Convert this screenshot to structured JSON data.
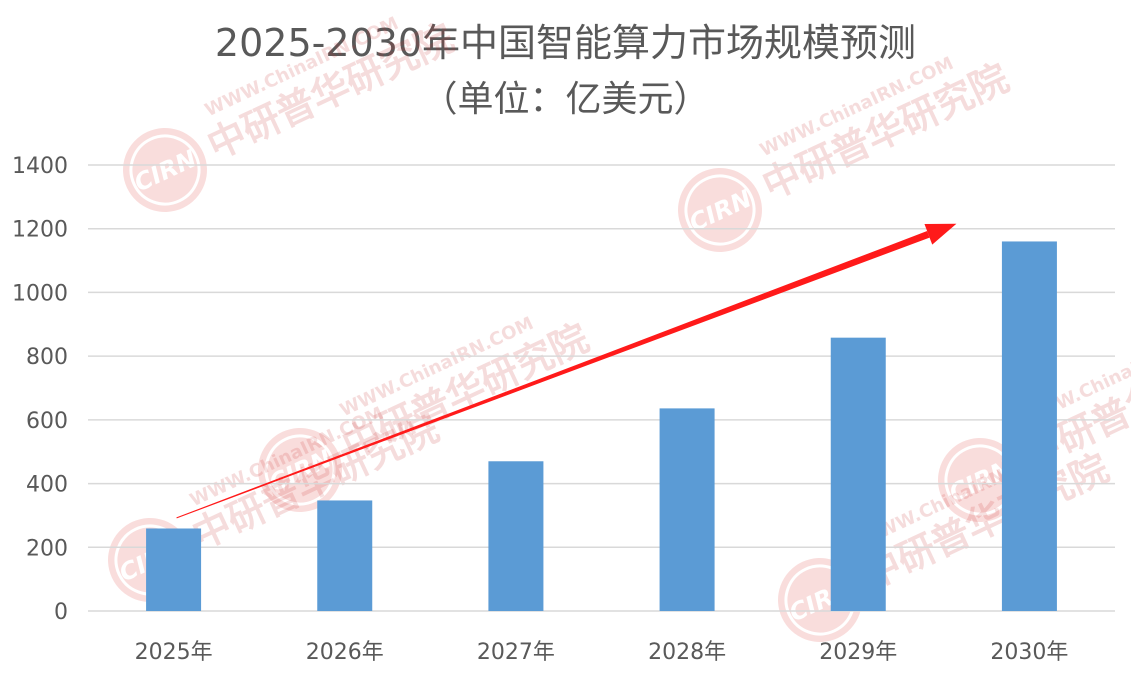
{
  "chart_data": {
    "type": "bar",
    "title": "2025-2030年中国智能算力市场规模预测",
    "subtitle": "（单位：亿美元）",
    "categories": [
      "2025年",
      "2026年",
      "2027年",
      "2028年",
      "2029年",
      "2030年"
    ],
    "values": [
      259,
      347,
      470,
      636,
      858,
      1160
    ],
    "ylim": [
      0,
      1400
    ],
    "yticks": [
      "0",
      "200",
      "400",
      "600",
      "800",
      "1000",
      "1200",
      "1400"
    ],
    "ytick_values": [
      0,
      200,
      400,
      600,
      800,
      1000,
      1200,
      1400
    ],
    "xlabel": "",
    "ylabel": "",
    "grid": true,
    "legend": "none",
    "colors": {
      "bar": "#5b9bd5",
      "grid": "#d9d9d9",
      "axis_text": "#595959",
      "trend_arrow": "#ff1a1a"
    },
    "annotation": {
      "type": "trend-arrow",
      "from": {
        "x": "2025年",
        "y": 330
      },
      "to": {
        "x": "2030年",
        "y": 1225
      }
    }
  },
  "watermark": {
    "logo_text": "CIRN",
    "cn_text": "中研普华研究院",
    "url_text": "WWW.ChinaIRN.COM"
  }
}
